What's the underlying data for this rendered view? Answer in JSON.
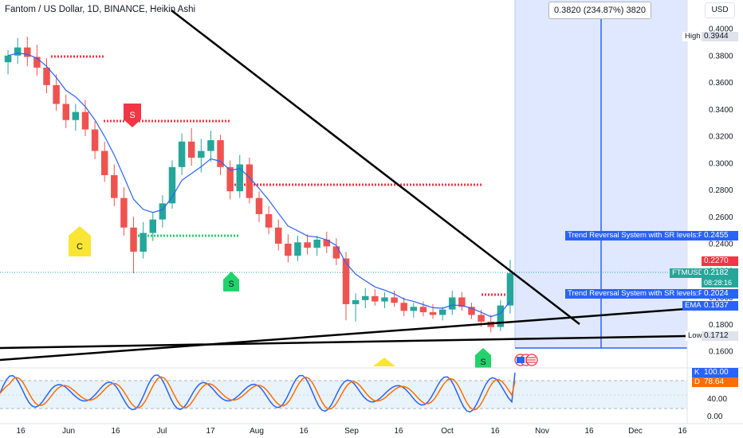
{
  "header": {
    "title": "Fantom / US Dollar, 1D, BINANCE, Heikin Ashi",
    "currency_button": "USD",
    "measure_readout": "0.3820 (234.87%) 3820"
  },
  "price_axis": {
    "ticks": [
      "0.4000",
      "0.3800",
      "0.3600",
      "0.3400",
      "0.3200",
      "0.3000",
      "0.2800",
      "0.2600",
      "0.2400",
      "0.2200",
      "0.2000",
      "0.1800",
      "0.1600"
    ],
    "high": {
      "label": "High",
      "value": "0.3944"
    },
    "low": {
      "label": "Low",
      "value": "0.1712"
    },
    "last_red": "0.2270",
    "symbol": {
      "label": "FTMUSD",
      "value": "0.2182",
      "countdown": "08:28:16"
    },
    "ema": {
      "label": "EMA",
      "value": "0.1937"
    },
    "sr_plot_1": {
      "label": "Trend Reversal System with SR levels:Plot",
      "value": "0.2455"
    },
    "sr_plot_2": {
      "label": "Trend Reversal System with SR levels:Plot",
      "value": "0.2024"
    }
  },
  "time_axis": {
    "ticks": [
      "16",
      "Jun",
      "16",
      "Jul",
      "17",
      "Aug",
      "16",
      "Sep",
      "16",
      "Oct",
      "16",
      "Nov",
      "16",
      "Dec",
      "16"
    ]
  },
  "signals": {
    "c_label": "C",
    "s_labels": [
      "S",
      "S",
      "S"
    ]
  },
  "stoch": {
    "k_label": "K",
    "k_value": "100.00",
    "d_label": "D",
    "d_value": "78.64",
    "ticks": [
      "40.00",
      "0.00"
    ]
  },
  "colors": {
    "up": "#26a69a",
    "down": "#ef5350",
    "ema": "#2962ff",
    "resistance": "#f23645",
    "support": "#22d36b",
    "projection": "#dbe6fe"
  },
  "chart_data": {
    "type": "candlestick",
    "ylim": [
      0.16,
      0.405
    ],
    "ohlc_heikin_ashi": [
      [
        0.375,
        0.384,
        0.366,
        0.38
      ],
      [
        0.38,
        0.393,
        0.374,
        0.386
      ],
      [
        0.386,
        0.394,
        0.372,
        0.379
      ],
      [
        0.379,
        0.388,
        0.365,
        0.371
      ],
      [
        0.371,
        0.378,
        0.352,
        0.358
      ],
      [
        0.358,
        0.366,
        0.339,
        0.344
      ],
      [
        0.344,
        0.351,
        0.326,
        0.332
      ],
      [
        0.332,
        0.344,
        0.324,
        0.338
      ],
      [
        0.338,
        0.347,
        0.32,
        0.325
      ],
      [
        0.325,
        0.331,
        0.303,
        0.309
      ],
      [
        0.309,
        0.316,
        0.286,
        0.291
      ],
      [
        0.291,
        0.299,
        0.268,
        0.274
      ],
      [
        0.274,
        0.282,
        0.246,
        0.252
      ],
      [
        0.252,
        0.26,
        0.218,
        0.234
      ],
      [
        0.234,
        0.256,
        0.229,
        0.248
      ],
      [
        0.248,
        0.263,
        0.242,
        0.258
      ],
      [
        0.258,
        0.276,
        0.252,
        0.27
      ],
      [
        0.27,
        0.302,
        0.266,
        0.297
      ],
      [
        0.297,
        0.322,
        0.291,
        0.316
      ],
      [
        0.316,
        0.326,
        0.298,
        0.304
      ],
      [
        0.304,
        0.318,
        0.293,
        0.309
      ],
      [
        0.309,
        0.324,
        0.301,
        0.317
      ],
      [
        0.317,
        0.321,
        0.291,
        0.297
      ],
      [
        0.297,
        0.302,
        0.273,
        0.279
      ],
      [
        0.279,
        0.306,
        0.274,
        0.299
      ],
      [
        0.299,
        0.304,
        0.27,
        0.274
      ],
      [
        0.274,
        0.279,
        0.256,
        0.262
      ],
      [
        0.262,
        0.268,
        0.247,
        0.252
      ],
      [
        0.252,
        0.258,
        0.235,
        0.24
      ],
      [
        0.24,
        0.247,
        0.226,
        0.231
      ],
      [
        0.231,
        0.246,
        0.227,
        0.241
      ],
      [
        0.241,
        0.247,
        0.232,
        0.237
      ],
      [
        0.237,
        0.246,
        0.231,
        0.243
      ],
      [
        0.243,
        0.249,
        0.233,
        0.238
      ],
      [
        0.238,
        0.244,
        0.224,
        0.229
      ],
      [
        0.229,
        0.234,
        0.183,
        0.195
      ],
      [
        0.195,
        0.203,
        0.182,
        0.198
      ],
      [
        0.198,
        0.207,
        0.192,
        0.201
      ],
      [
        0.201,
        0.206,
        0.194,
        0.197
      ],
      [
        0.197,
        0.204,
        0.192,
        0.2
      ],
      [
        0.2,
        0.205,
        0.193,
        0.196
      ],
      [
        0.196,
        0.2,
        0.186,
        0.19
      ],
      [
        0.19,
        0.196,
        0.185,
        0.193
      ],
      [
        0.193,
        0.197,
        0.186,
        0.189
      ],
      [
        0.189,
        0.195,
        0.184,
        0.187
      ],
      [
        0.187,
        0.193,
        0.183,
        0.191
      ],
      [
        0.191,
        0.205,
        0.187,
        0.2
      ],
      [
        0.2,
        0.204,
        0.19,
        0.193
      ],
      [
        0.193,
        0.196,
        0.184,
        0.187
      ],
      [
        0.187,
        0.191,
        0.178,
        0.182
      ],
      [
        0.182,
        0.187,
        0.174,
        0.178
      ],
      [
        0.178,
        0.198,
        0.175,
        0.194
      ],
      [
        0.194,
        0.228,
        0.188,
        0.218
      ]
    ]
  }
}
